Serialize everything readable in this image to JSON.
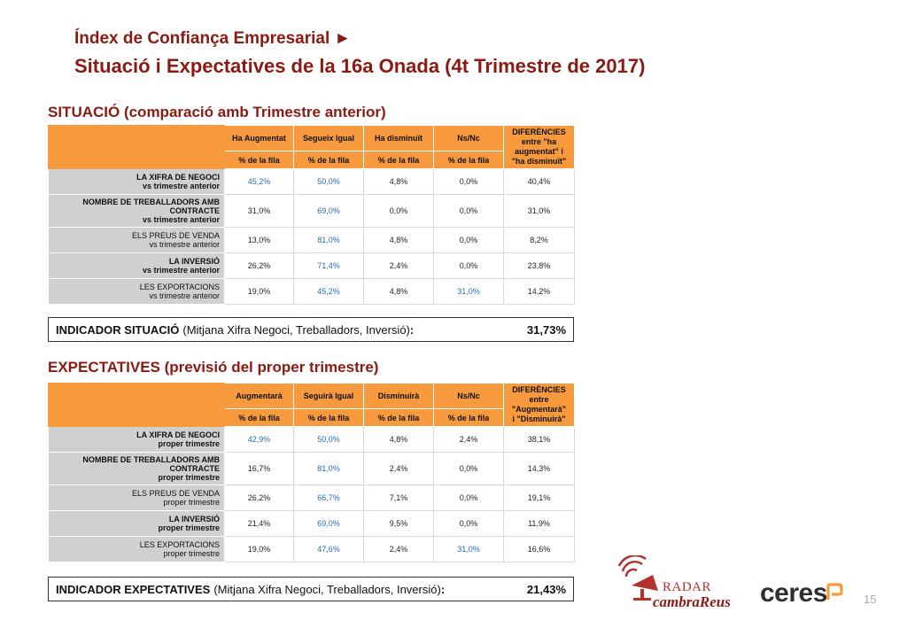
{
  "header": {
    "subtitle": "Índex de Confiança Empresarial ►",
    "title": "Situació i Expectatives de la 16a Onada (4t Trimestre de 2017)"
  },
  "situacio": {
    "section_title": "SITUACIÓ (comparació amb Trimestre anterior)",
    "columns": [
      "Ha Augmentat",
      "Segueix Igual",
      "Ha disminuït",
      "Ns/Nc"
    ],
    "diff_header": [
      "DIFERÈNCIES",
      "entre \"ha",
      "augmentat\" i",
      "\"ha disminuït\""
    ],
    "subheader": "% de la fila",
    "rows": [
      {
        "label": [
          "LA XIFRA DE NEGOCI",
          "vs trimestre anterior"
        ],
        "bold": true,
        "values": [
          "45,2%",
          "50,0%",
          "4,8%",
          "0,0%",
          "40,4%"
        ],
        "highlight": [
          0,
          1
        ]
      },
      {
        "label": [
          "NOMBRE DE TREBALLADORS AMB",
          "CONTRACTE",
          "vs trimestre anterior"
        ],
        "bold": true,
        "values": [
          "31,0%",
          "69,0%",
          "0,0%",
          "0,0%",
          "31,0%"
        ],
        "highlight": [
          1
        ]
      },
      {
        "label": [
          "ELS PREUS DE VENDA",
          "vs trimestre anterior"
        ],
        "bold": false,
        "values": [
          "13,0%",
          "81,0%",
          "4,8%",
          "0,0%",
          "8,2%"
        ],
        "highlight": [
          1
        ]
      },
      {
        "label": [
          "LA INVERSIÓ",
          "vs trimestre anterior"
        ],
        "bold": true,
        "values": [
          "26,2%",
          "71,4%",
          "2,4%",
          "0,0%",
          "23,8%"
        ],
        "highlight": [
          1
        ]
      },
      {
        "label": [
          "LES EXPORTACIONS",
          "vs trimestre anterior"
        ],
        "bold": false,
        "values": [
          "19,0%",
          "45,2%",
          "4,8%",
          "31,0%",
          "14,2%"
        ],
        "highlight": [
          1,
          3
        ]
      }
    ],
    "indicator": {
      "label": "INDICADOR SITUACIÓ",
      "desc": "(Mitjana Xifra Negoci, Treballadors, Inversió)",
      "colon": ":",
      "value": "31,73%"
    }
  },
  "expectatives": {
    "section_title": "EXPECTATIVES (previsió del proper trimestre)",
    "columns": [
      "Augmentarà",
      "Seguirà Igual",
      "Disminuirà",
      "Ns/Nc"
    ],
    "diff_header": [
      "DIFERÈNCIES",
      "entre",
      "\"Augmentarà\"",
      "i \"Disminuirà\""
    ],
    "subheader": "% de la fila",
    "rows": [
      {
        "label": [
          "LA XIFRA DE NEGOCI",
          "proper trimestre"
        ],
        "bold": true,
        "values": [
          "42,9%",
          "50,0%",
          "4,8%",
          "2,4%",
          "38,1%"
        ],
        "highlight": [
          0,
          1
        ]
      },
      {
        "label": [
          "NOMBRE DE TREBALLADORS AMB",
          "CONTRACTE",
          "proper trimestre"
        ],
        "bold": true,
        "values": [
          "16,7%",
          "81,0%",
          "2,4%",
          "0,0%",
          "14,3%"
        ],
        "highlight": [
          1
        ]
      },
      {
        "label": [
          "ELS PREUS DE VENDA",
          "proper trimestre"
        ],
        "bold": false,
        "values": [
          "26,2%",
          "66,7%",
          "7,1%",
          "0,0%",
          "19,1%"
        ],
        "highlight": [
          1
        ]
      },
      {
        "label": [
          "LA INVERSIÓ",
          "proper trimestre"
        ],
        "bold": true,
        "values": [
          "21,4%",
          "69,0%",
          "9,5%",
          "0,0%",
          "11,9%"
        ],
        "highlight": [
          1
        ]
      },
      {
        "label": [
          "LES EXPORTACIONS",
          "proper trimestre"
        ],
        "bold": false,
        "values": [
          "19,0%",
          "47,6%",
          "2,4%",
          "31,0%",
          "16,6%"
        ],
        "highlight": [
          1,
          3
        ]
      }
    ],
    "indicator": {
      "label": "INDICADOR EXPECTATIVES",
      "desc": "(Mitjana Xifra Negoci, Treballadors, Inversió)",
      "colon": ":",
      "value": "21,43%"
    }
  },
  "footer": {
    "radar_line1": "RADAR",
    "radar_line2": "cambraReus",
    "ceres": "ceres",
    "page_number": "15"
  },
  "colors": {
    "title": "#8b1a12",
    "header_orange": "#f79a3d",
    "label_gray": "#d0d0d0",
    "highlight_blue": "#2b6cb0"
  }
}
